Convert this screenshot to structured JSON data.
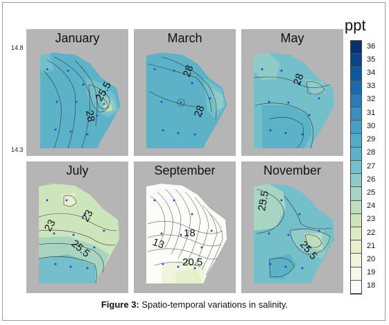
{
  "latitude_labels": [
    "14.8",
    "14.3"
  ],
  "legend": {
    "unit": "ppt",
    "ticks": [
      "36",
      "35",
      "34",
      "33",
      "32",
      "31",
      "30",
      "29",
      "28",
      "27",
      "26",
      "25",
      "24",
      "23",
      "22",
      "21",
      "20",
      "19",
      "18"
    ],
    "colors": [
      "#08306b",
      "#0b4588",
      "#10589e",
      "#1b6aad",
      "#2a7db9",
      "#3a8fc0",
      "#489fc6",
      "#53abc8",
      "#5cb3c8",
      "#73bfca",
      "#8fcbc7",
      "#a7d5c2",
      "#bcdebd",
      "#cde5bb",
      "#dcecc1",
      "#e6f1cc",
      "#eef5da",
      "#f5f9e8",
      "#fcfdf8"
    ]
  },
  "panels": [
    {
      "month": "January",
      "contour_labels": [
        "25.5",
        "28"
      ]
    },
    {
      "month": "March",
      "contour_labels": [
        "28",
        "28"
      ]
    },
    {
      "month": "May",
      "contour_labels": [
        "28"
      ]
    },
    {
      "month": "July",
      "contour_labels": [
        "23",
        "23",
        "25.5"
      ]
    },
    {
      "month": "September",
      "contour_labels": [
        "13",
        "18",
        "20.5"
      ]
    },
    {
      "month": "November",
      "contour_labels": [
        "25.5",
        "25.5"
      ]
    }
  ],
  "caption": {
    "label": "Figure 3:",
    "text": " Spatio-temporal variations in salinity."
  }
}
